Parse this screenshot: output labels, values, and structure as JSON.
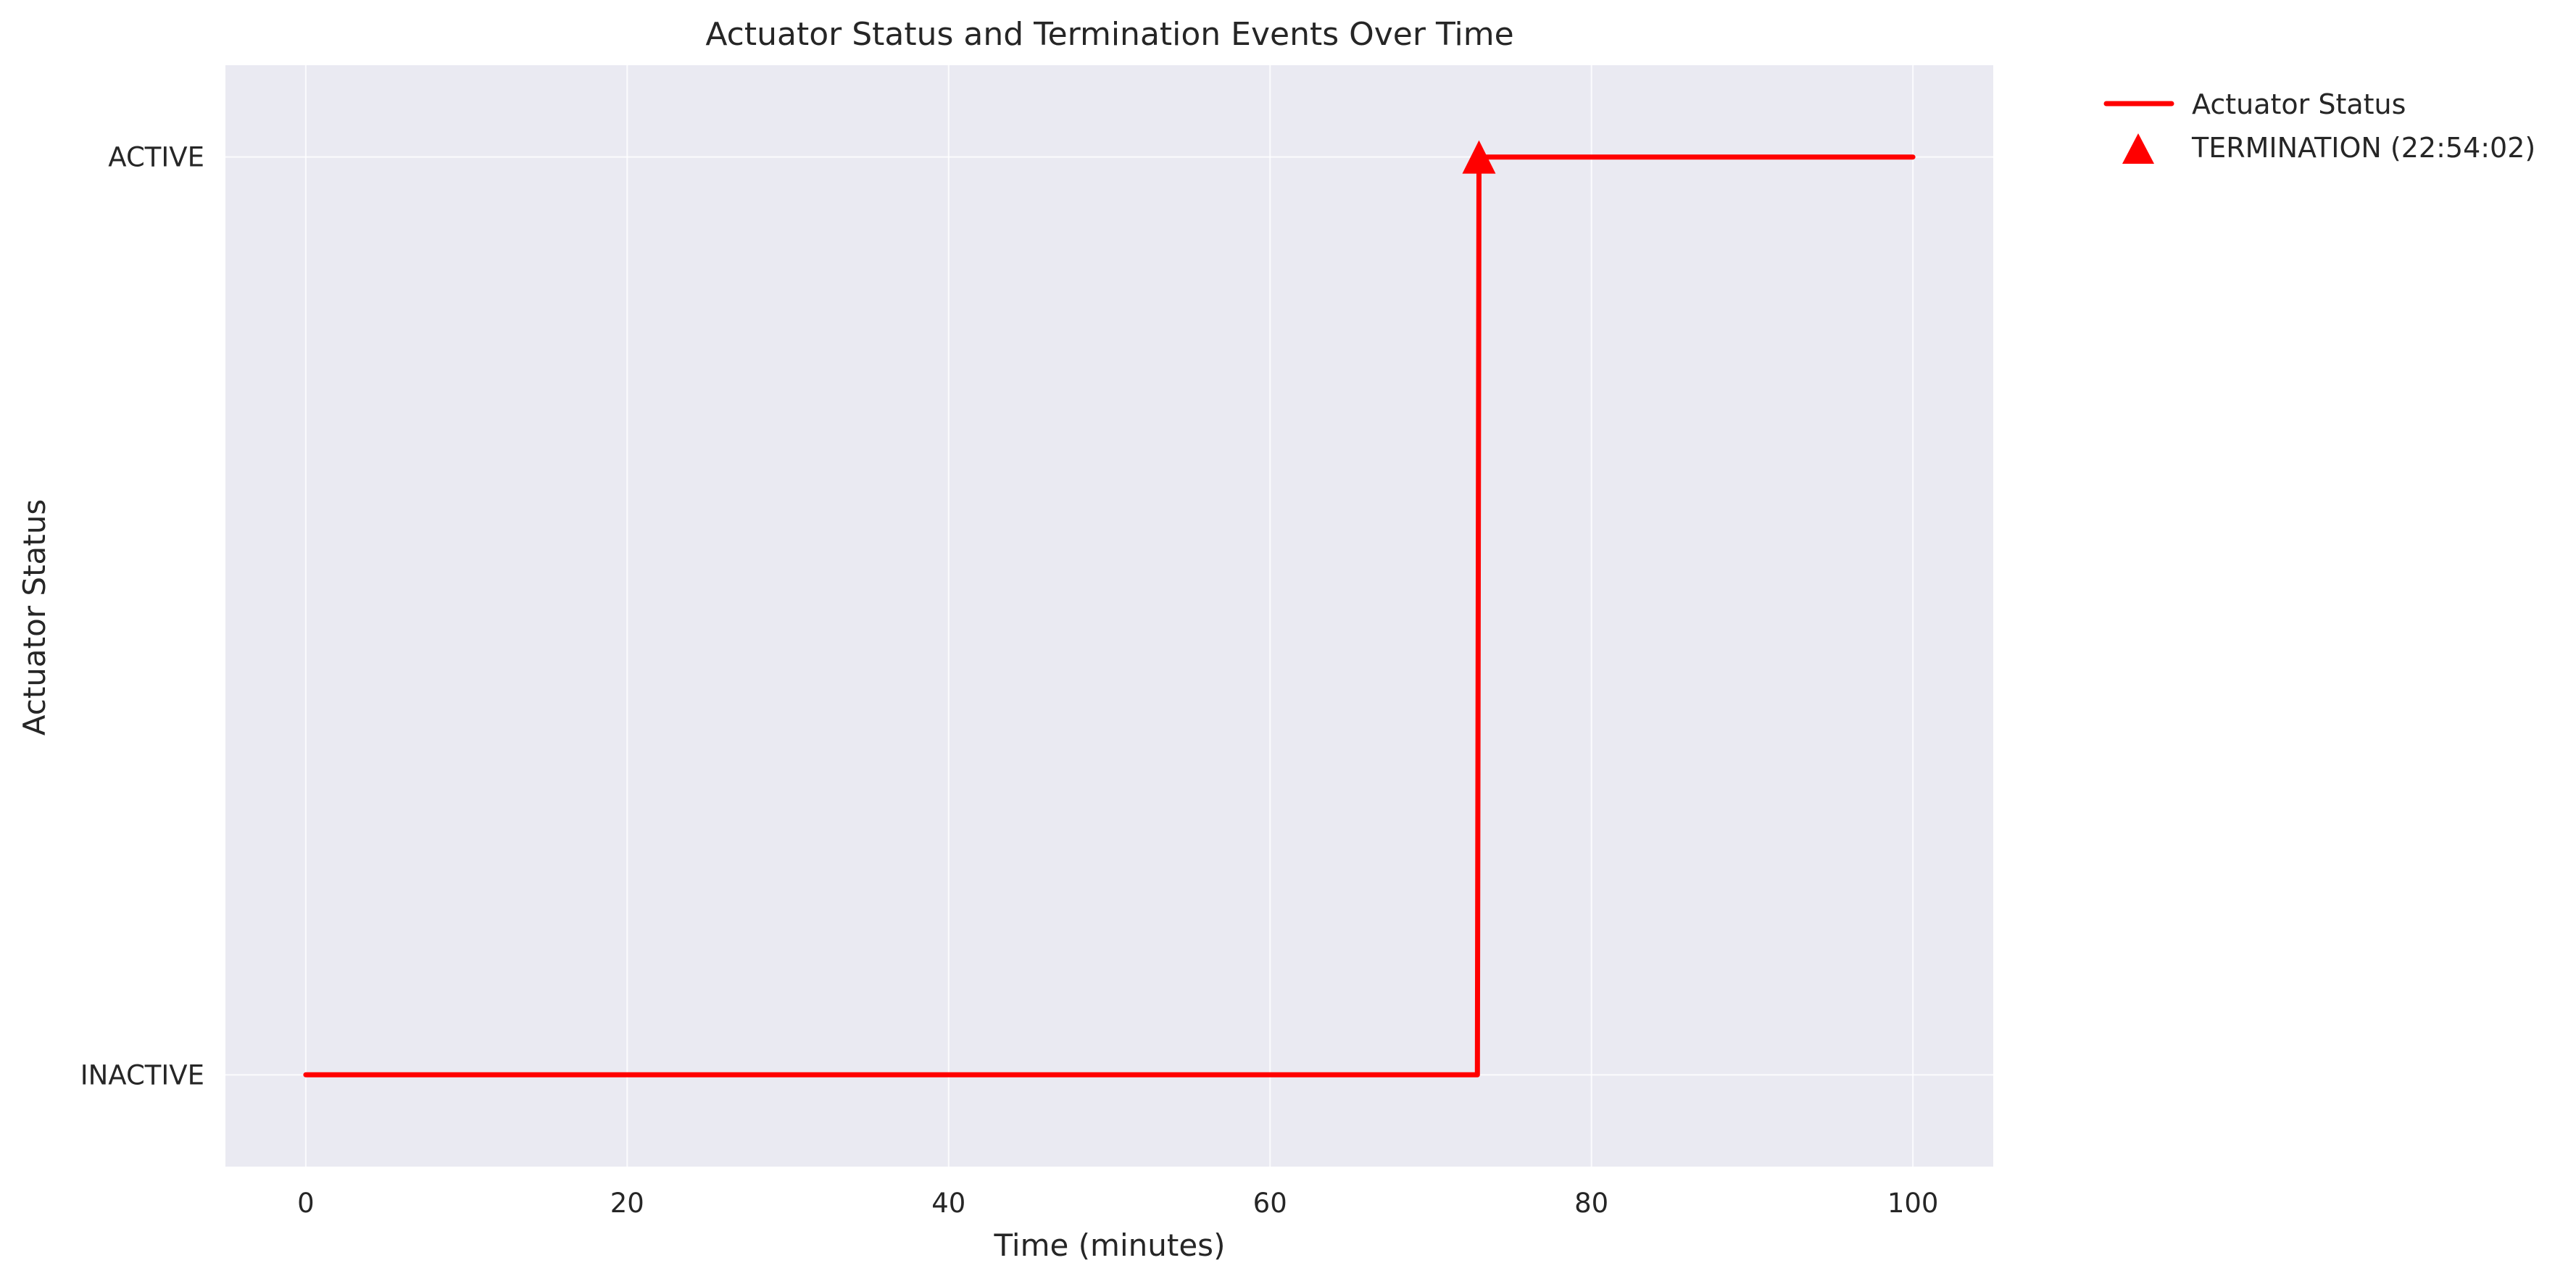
{
  "chart_data": {
    "type": "line",
    "title": "Actuator Status and Termination Events Over Time",
    "xlabel": "Time (minutes)",
    "ylabel": "Actuator Status",
    "xlim": [
      -5,
      105
    ],
    "ylim": [
      -0.1,
      1.1
    ],
    "x_ticks": [
      0,
      20,
      40,
      60,
      80,
      100
    ],
    "x_tick_labels": [
      "0",
      "20",
      "40",
      "60",
      "80",
      "100"
    ],
    "y_ticks": [
      0,
      1
    ],
    "y_tick_labels": [
      "INACTIVE",
      "ACTIVE"
    ],
    "grid": true,
    "legend_position": "outside-right-top",
    "series": [
      {
        "name": "Actuator Status",
        "color": "#ff0000",
        "x": [
          0,
          72.9,
          73.0,
          100
        ],
        "y": [
          0,
          0,
          1,
          1
        ]
      }
    ],
    "events": [
      {
        "name": "TERMINATION (22:54:02)",
        "marker": "triangle",
        "color": "#ff0000",
        "x": 73.0,
        "y": 1
      }
    ]
  },
  "colors": {
    "plot_background": "#eaeaf2",
    "grid": "#ffffff",
    "line": "#ff0000"
  }
}
